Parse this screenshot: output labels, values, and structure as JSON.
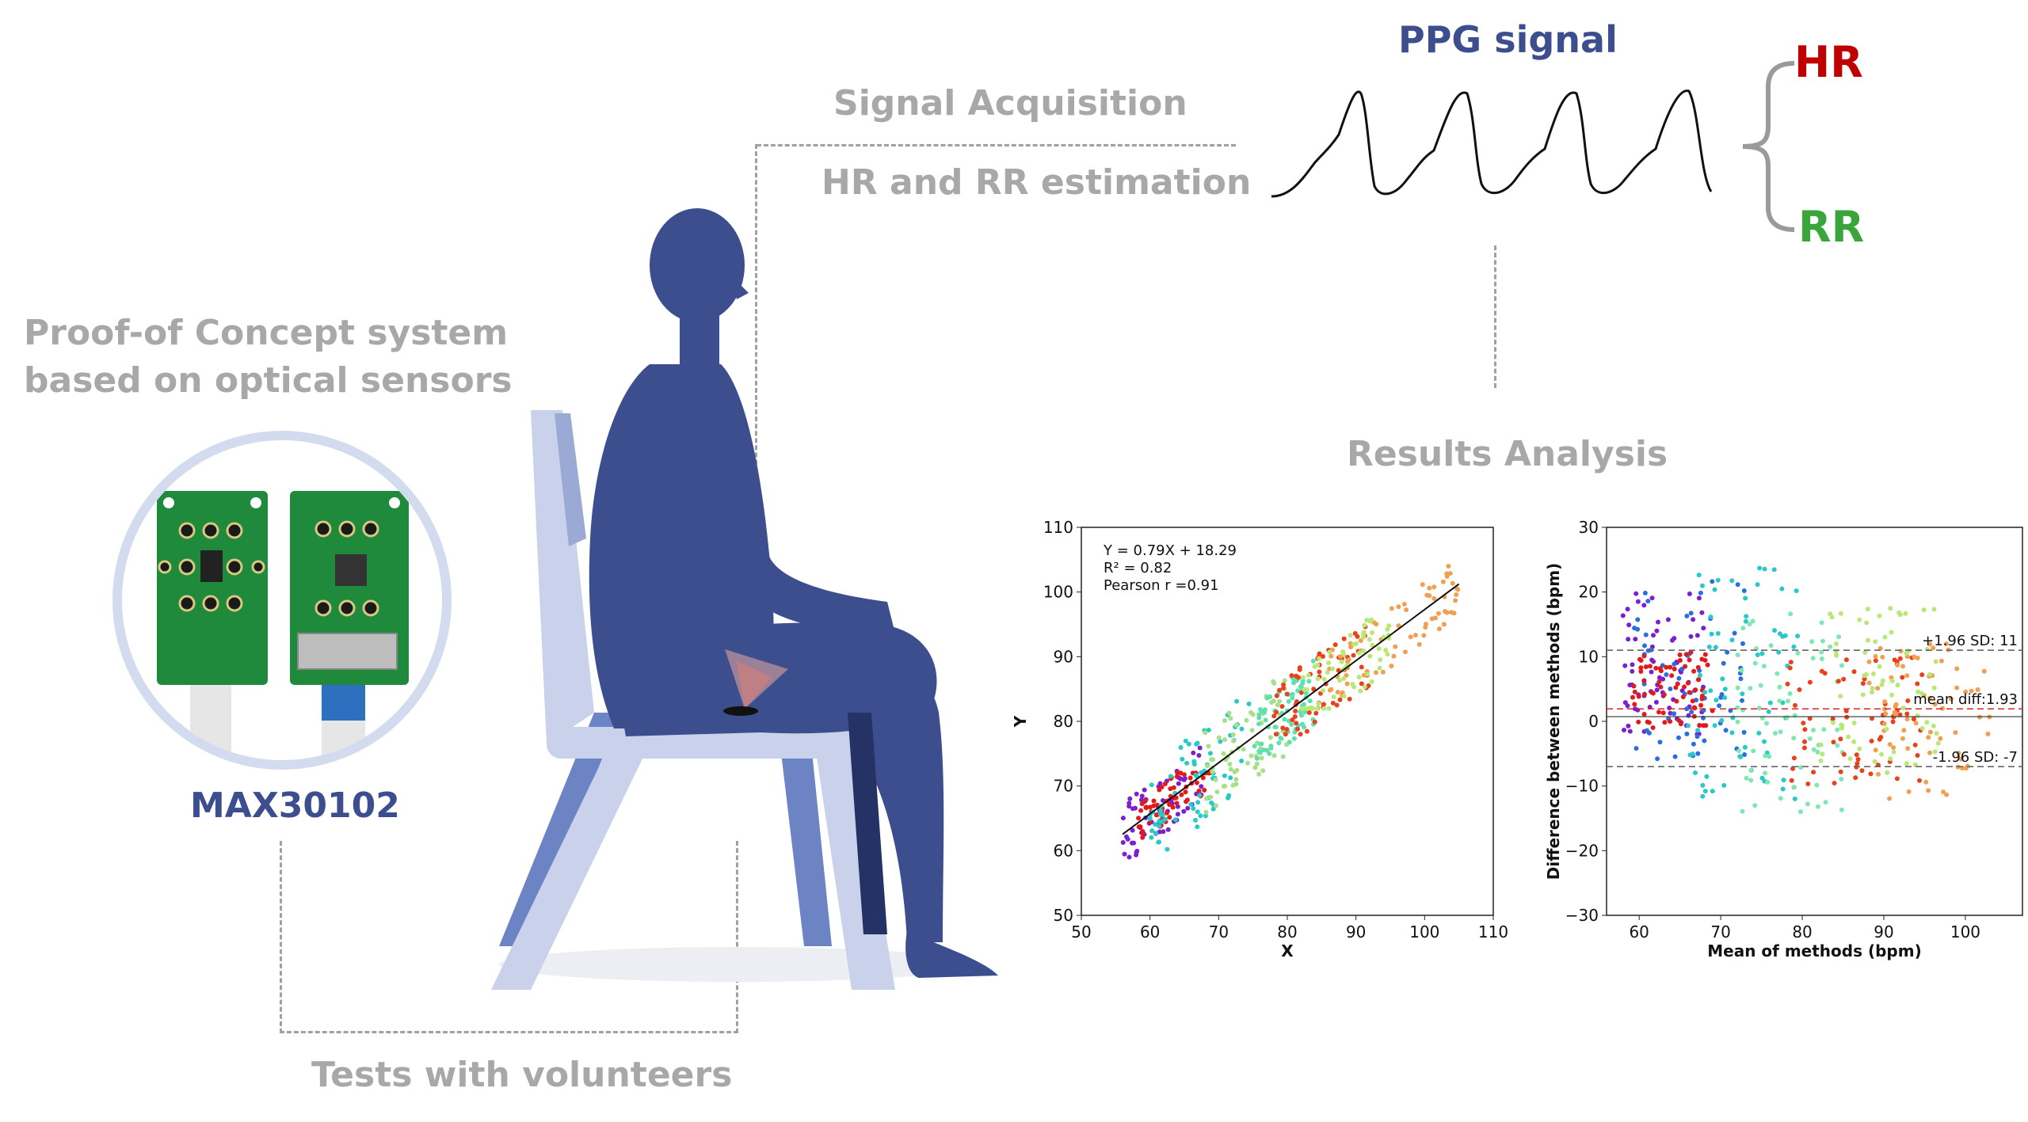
{
  "labels": {
    "signal_acquisition": "Signal Acquisition",
    "hr_rr_estimation": "HR and RR estimation",
    "proof_concept_line1": "Proof-of Concept system",
    "proof_concept_line2": "based on optical sensors",
    "sensor": "MAX30102",
    "tests": "Tests with volunteers",
    "results": "Results Analysis",
    "ppg_title": "PPG signal",
    "hr": "HR",
    "rr": "RR"
  },
  "colors": {
    "gray_text": "#a8a8a8",
    "navy": "#3d4e8f",
    "hr_red": "#c00000",
    "rr_green": "#3aa53a",
    "chair": "#c9d2ea",
    "pcb_green": "#1f8a3c",
    "ring": "#d3dbee"
  },
  "icons": [
    "seated-person-figure",
    "chair-figure",
    "sensor-board-photo",
    "ppg-waveform",
    "curly-brace"
  ],
  "chart_data": [
    {
      "type": "scatter",
      "xlabel": "X",
      "ylabel": "Y",
      "xlim": [
        50,
        110
      ],
      "ylim": [
        50,
        110
      ],
      "xticks": [
        "50",
        "60",
        "70",
        "80",
        "90",
        "100",
        "110"
      ],
      "yticks": [
        "50",
        "60",
        "70",
        "80",
        "90",
        "100",
        "110"
      ],
      "annotation": [
        "Y = 0.79X + 18.29",
        "R² = 0.82",
        "Pearson r =0.91"
      ],
      "regression": {
        "slope": 0.79,
        "intercept": 18.29,
        "x_range": [
          56,
          105
        ]
      },
      "clusters": [
        {
          "x": [
            56,
            68
          ],
          "y": [
            59,
            78
          ],
          "color": "#7b1fd0"
        },
        {
          "x": [
            58,
            69
          ],
          "y": [
            59,
            72
          ],
          "color": "#e31a1a"
        },
        {
          "x": [
            60,
            75
          ],
          "y": [
            60,
            90
          ],
          "color": "#2bc8c8"
        },
        {
          "x": [
            68,
            80
          ],
          "y": [
            62,
            88
          ],
          "color": "#a8e08a"
        },
        {
          "x": [
            75,
            84
          ],
          "y": [
            72,
            92
          ],
          "color": "#5fe0b0"
        },
        {
          "x": [
            78,
            92
          ],
          "y": [
            78,
            100
          ],
          "color": "#e8411c"
        },
        {
          "x": [
            86,
            105
          ],
          "y": [
            84,
            104
          ],
          "color": "#f0a050"
        },
        {
          "x": [
            82,
            95
          ],
          "y": [
            82,
            103
          ],
          "color": "#b8e878"
        }
      ]
    },
    {
      "type": "scatter",
      "xlabel": "Mean of methods (bpm)",
      "ylabel": "Difference between methods (bpm)",
      "xlim": [
        56,
        107
      ],
      "ylim": [
        -30,
        30
      ],
      "xticks": [
        "60",
        "70",
        "80",
        "90",
        "100"
      ],
      "yticks": [
        "30",
        "20",
        "10",
        "0",
        "−10",
        "−20",
        "−30"
      ],
      "lines": [
        {
          "label": "+1.96 SD: 11",
          "y": 11
        },
        {
          "label": "mean diff:1.93",
          "y": 1.93
        },
        {
          "label": "-1.96 SD: -7",
          "y": -7
        }
      ],
      "clusters": [
        {
          "x": [
            58,
            68
          ],
          "y": [
            -2,
            20
          ],
          "color": "#7b1fd0"
        },
        {
          "x": [
            59,
            73
          ],
          "y": [
            -6,
            22
          ],
          "color": "#2a6fe0"
        },
        {
          "x": [
            59,
            69
          ],
          "y": [
            -1,
            11
          ],
          "color": "#e31a1a"
        },
        {
          "x": [
            66,
            80
          ],
          "y": [
            -12,
            24
          ],
          "color": "#2bc8c8"
        },
        {
          "x": [
            72,
            85
          ],
          "y": [
            -14,
            18
          ],
          "color": "#7ee8b0"
        },
        {
          "x": [
            78,
            95
          ],
          "y": [
            -10,
            10
          ],
          "color": "#e8411c"
        },
        {
          "x": [
            88,
            103
          ],
          "y": [
            -12,
            12
          ],
          "color": "#f0a050"
        },
        {
          "x": [
            82,
            97
          ],
          "y": [
            -8,
            18
          ],
          "color": "#b8e878"
        }
      ]
    }
  ]
}
